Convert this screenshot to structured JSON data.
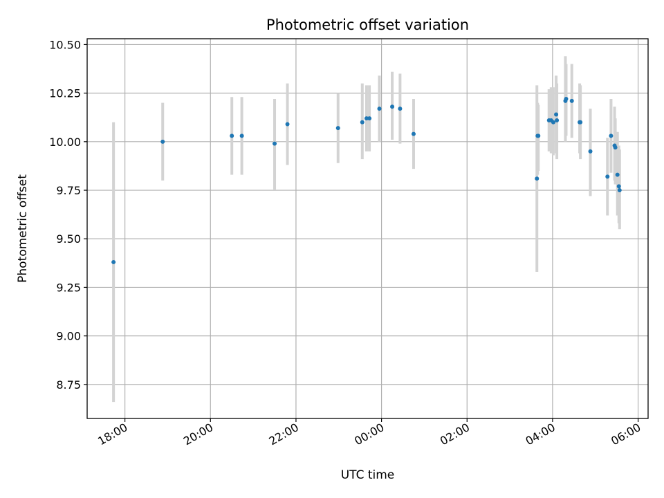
{
  "chart_data": {
    "type": "scatter",
    "title": "Photometric offset variation",
    "xlabel": "UTC time",
    "ylabel": "Photometric offset",
    "x_axis": "time",
    "x_tick_labels": [
      "18:00",
      "20:00",
      "22:00",
      "00:00",
      "02:00",
      "04:00",
      "06:00"
    ],
    "x_ticks": [
      "2000-01-01T18:00",
      "2000-01-01T20:00",
      "2000-01-01T22:00",
      "2000-01-02T00:00",
      "2000-01-02T02:00",
      "2000-01-02T04:00",
      "2000-01-02T06:00"
    ],
    "xlim": [
      "2000-01-01T17:07",
      "2000-01-02T06:14"
    ],
    "y_ticks": [
      8.75,
      9.0,
      9.25,
      9.5,
      9.75,
      10.0,
      10.25,
      10.5
    ],
    "y_tick_labels": [
      "8.75",
      "9.00",
      "9.25",
      "9.50",
      "9.75",
      "10.00",
      "10.25",
      "10.50"
    ],
    "ylim": [
      8.575,
      10.53
    ],
    "grid": true,
    "marker_color": "#1f77b4",
    "errorbar_color": "#d3d3d3",
    "points": [
      {
        "t": "2000-01-01T17:44",
        "y": 9.38,
        "lo": 8.66,
        "hi": 10.1
      },
      {
        "t": "2000-01-01T18:53",
        "y": 10.0,
        "lo": 9.8,
        "hi": 10.2
      },
      {
        "t": "2000-01-01T20:30",
        "y": 10.03,
        "lo": 9.83,
        "hi": 10.23
      },
      {
        "t": "2000-01-01T20:44",
        "y": 10.03,
        "lo": 9.83,
        "hi": 10.23
      },
      {
        "t": "2000-01-01T21:30",
        "y": 9.99,
        "lo": 9.75,
        "hi": 10.22
      },
      {
        "t": "2000-01-01T21:48",
        "y": 10.09,
        "lo": 9.88,
        "hi": 10.3
      },
      {
        "t": "2000-01-01T22:59",
        "y": 10.07,
        "lo": 9.89,
        "hi": 10.25
      },
      {
        "t": "2000-01-01T23:33",
        "y": 10.1,
        "lo": 9.91,
        "hi": 10.3
      },
      {
        "t": "2000-01-01T23:39",
        "y": 10.12,
        "lo": 9.95,
        "hi": 10.29
      },
      {
        "t": "2000-01-01T23:43",
        "y": 10.12,
        "lo": 9.95,
        "hi": 10.29
      },
      {
        "t": "2000-01-01T23:57",
        "y": 10.17,
        "lo": 10.0,
        "hi": 10.34
      },
      {
        "t": "2000-01-02T00:15",
        "y": 10.18,
        "lo": 10.01,
        "hi": 10.36
      },
      {
        "t": "2000-01-02T00:26",
        "y": 10.17,
        "lo": 9.99,
        "hi": 10.35
      },
      {
        "t": "2000-01-02T00:45",
        "y": 10.04,
        "lo": 9.86,
        "hi": 10.22
      },
      {
        "t": "2000-01-02T03:38",
        "y": 9.81,
        "lo": 9.33,
        "hi": 10.29
      },
      {
        "t": "2000-01-02T03:39",
        "y": 10.03,
        "lo": 9.83,
        "hi": 10.2
      },
      {
        "t": "2000-01-02T03:40",
        "y": 10.03,
        "lo": 9.85,
        "hi": 10.19
      },
      {
        "t": "2000-01-02T03:55",
        "y": 10.11,
        "lo": 9.95,
        "hi": 10.27
      },
      {
        "t": "2000-01-02T03:58",
        "y": 10.11,
        "lo": 9.94,
        "hi": 10.28
      },
      {
        "t": "2000-01-02T04:01",
        "y": 10.1,
        "lo": 9.93,
        "hi": 10.28
      },
      {
        "t": "2000-01-02T04:05",
        "y": 10.14,
        "lo": 9.94,
        "hi": 10.34
      },
      {
        "t": "2000-01-02T04:06",
        "y": 10.11,
        "lo": 9.91,
        "hi": 10.3
      },
      {
        "t": "2000-01-02T04:18",
        "y": 10.21,
        "lo": 10.0,
        "hi": 10.44
      },
      {
        "t": "2000-01-02T04:19",
        "y": 10.22,
        "lo": 10.03,
        "hi": 10.4
      },
      {
        "t": "2000-01-02T04:27",
        "y": 10.21,
        "lo": 10.02,
        "hi": 10.4
      },
      {
        "t": "2000-01-02T04:38",
        "y": 10.1,
        "lo": 9.94,
        "hi": 10.3
      },
      {
        "t": "2000-01-02T04:39",
        "y": 10.1,
        "lo": 9.91,
        "hi": 10.29
      },
      {
        "t": "2000-01-02T04:53",
        "y": 9.95,
        "lo": 9.72,
        "hi": 10.17
      },
      {
        "t": "2000-01-02T05:17",
        "y": 9.82,
        "lo": 9.62,
        "hi": 10.02
      },
      {
        "t": "2000-01-02T05:22",
        "y": 10.03,
        "lo": 9.84,
        "hi": 10.22
      },
      {
        "t": "2000-01-02T05:27",
        "y": 9.98,
        "lo": 9.8,
        "hi": 10.18
      },
      {
        "t": "2000-01-02T05:28",
        "y": 9.97,
        "lo": 9.78,
        "hi": 10.12
      },
      {
        "t": "2000-01-02T05:31",
        "y": 9.83,
        "lo": 9.62,
        "hi": 10.05
      },
      {
        "t": "2000-01-02T05:33",
        "y": 9.77,
        "lo": 9.58,
        "hi": 9.98
      },
      {
        "t": "2000-01-02T05:34",
        "y": 9.75,
        "lo": 9.55,
        "hi": 9.96
      }
    ]
  }
}
